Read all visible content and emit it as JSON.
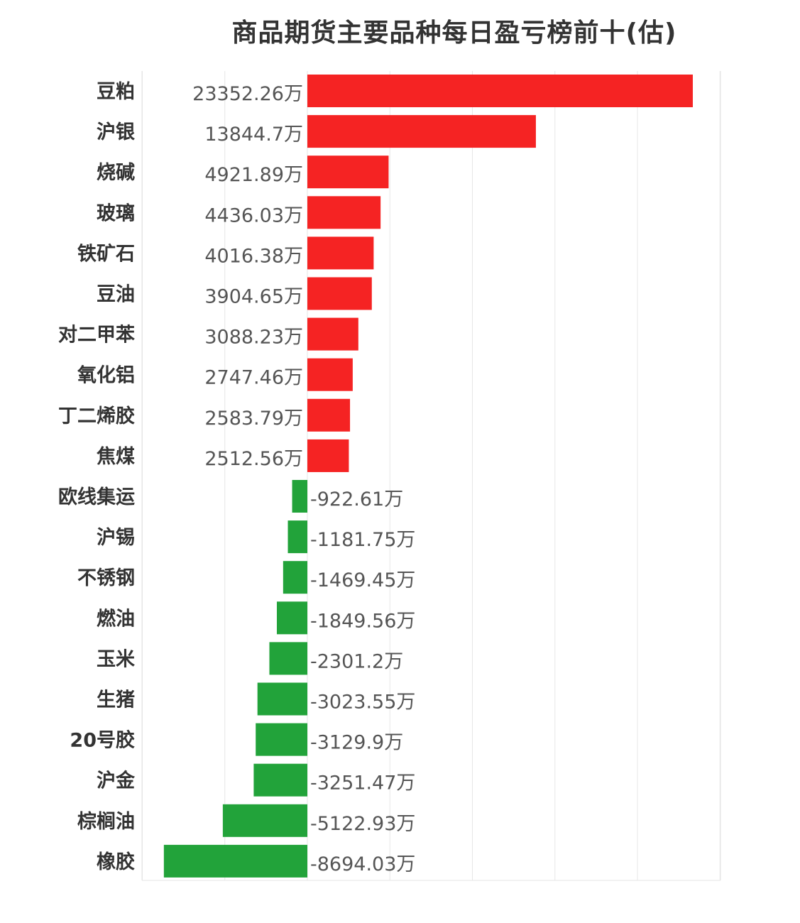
{
  "chart_data": {
    "type": "bar",
    "orientation": "horizontal",
    "title": "商品期货主要品种每日盈亏榜前十(估)",
    "unit_suffix": "万",
    "categories": [
      "豆粕",
      "沪银",
      "烧碱",
      "玻璃",
      "铁矿石",
      "豆油",
      "对二甲苯",
      "氧化铝",
      "丁二烯胶",
      "焦煤",
      "欧线集运",
      "沪锡",
      "不锈钢",
      "燃油",
      "玉米",
      "生猪",
      "20号胶",
      "沪金",
      "棕榈油",
      "橡胶"
    ],
    "values": [
      23352.26,
      13844.7,
      4921.89,
      4436.03,
      4016.38,
      3904.65,
      3088.23,
      2747.46,
      2583.79,
      2512.56,
      -922.61,
      -1181.75,
      -1469.45,
      -1849.56,
      -2301.2,
      -3023.55,
      -3129.9,
      -3251.47,
      -5122.93,
      -8694.03
    ],
    "value_labels": [
      "23352.26万",
      "13844.7万",
      "4921.89万",
      "4436.03万",
      "4016.38万",
      "3904.65万",
      "3088.23万",
      "2747.46万",
      "2583.79万",
      "2512.56万",
      "-922.61万",
      "-1181.75万",
      "-1469.45万",
      "-1849.56万",
      "-2301.2万",
      "-3023.55万",
      "-3129.9万",
      "-3251.47万",
      "-5122.93万",
      "-8694.03万"
    ],
    "xlim": [
      -10000,
      25000
    ],
    "grid": true,
    "colors": {
      "positive": "#f52323",
      "negative": "#22a33a",
      "grid": "#e6e6e6"
    }
  }
}
